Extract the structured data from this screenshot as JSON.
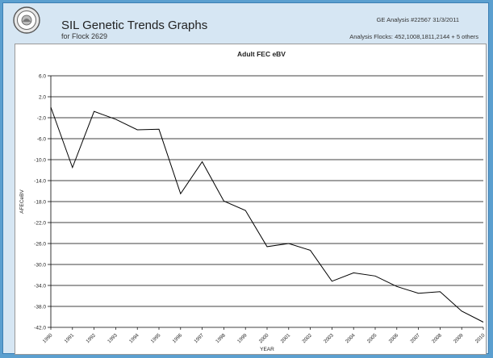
{
  "header": {
    "title": "SIL Genetic Trends Graphs",
    "subtitle": "for Flock 2629",
    "analysis_id": "GE Analysis #22567 31/3/2011",
    "analysis_flocks": "Analysis Flocks: 452,1008,1811,2144 + 5 others",
    "logo_icon": "sil-seal-logo"
  },
  "chart_data": {
    "type": "line",
    "title": "Adult FEC eBV",
    "xlabel": "YEAR",
    "ylabel": "AFECeBV",
    "categories": [
      "1990",
      "1991",
      "1992",
      "1993",
      "1994",
      "1995",
      "1996",
      "1997",
      "1998",
      "1999",
      "2000",
      "2001",
      "2002",
      "2003",
      "2004",
      "2005",
      "2006",
      "2007",
      "2008",
      "2009",
      "2010"
    ],
    "values": [
      0.0,
      -11.5,
      -0.8,
      -2.3,
      -4.3,
      -4.2,
      -16.5,
      -10.4,
      -17.9,
      -19.7,
      -26.6,
      -26.0,
      -27.3,
      -33.2,
      -31.6,
      -32.2,
      -34.2,
      -35.5,
      -35.2,
      -38.9,
      -41.0
    ],
    "y_ticks": [
      "6.0",
      "2.0",
      "-2.0",
      "-6.0",
      "-10.0",
      "-14.0",
      "-18.0",
      "-22.0",
      "-26.0",
      "-30.0",
      "-34.0",
      "-38.0",
      "-42.0"
    ],
    "ylim": [
      -42,
      6
    ],
    "grid": "horizontal",
    "line_color": "#000000"
  }
}
